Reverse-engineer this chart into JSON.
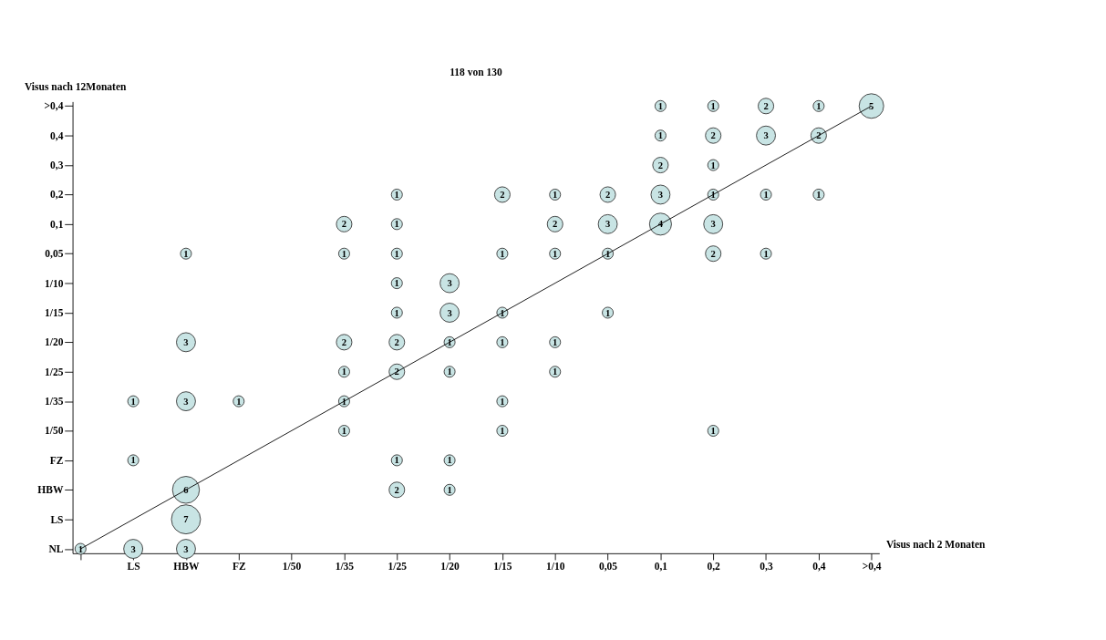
{
  "chart_data": {
    "type": "heatmap",
    "title": "118 von 130",
    "xlabel": "Visus nach 2 Monaten",
    "ylabel": "Visus nach 12Monaten",
    "categories": [
      null,
      "LS",
      "HBW",
      "FZ",
      "1/50",
      "1/35",
      "1/25",
      "1/20",
      "1/15",
      "1/10",
      "0,05",
      "0,1",
      "0,2",
      "0,3",
      "0,4",
      ">0,4"
    ],
    "y_categories": [
      ">0,4",
      "0,4",
      "0,3",
      "0,2",
      "0,1",
      "0,05",
      "1/10",
      "1/15",
      "1/20",
      "1/25",
      "1/35",
      "1/50",
      "FZ",
      "HBW",
      "LS",
      "NL"
    ],
    "cells": [
      [
        null,
        null,
        null,
        null,
        null,
        null,
        null,
        null,
        null,
        null,
        null,
        1,
        1,
        2,
        1,
        5
      ],
      [
        null,
        null,
        null,
        null,
        null,
        null,
        null,
        null,
        null,
        null,
        null,
        1,
        2,
        3,
        2,
        null
      ],
      [
        null,
        null,
        null,
        null,
        null,
        null,
        null,
        null,
        null,
        null,
        null,
        2,
        1,
        null,
        null,
        null
      ],
      [
        null,
        null,
        null,
        null,
        null,
        null,
        1,
        null,
        2,
        1,
        2,
        3,
        1,
        1,
        1,
        null
      ],
      [
        null,
        null,
        null,
        null,
        null,
        2,
        1,
        null,
        null,
        2,
        3,
        4,
        3,
        null,
        null,
        null
      ],
      [
        null,
        null,
        1,
        null,
        null,
        1,
        1,
        null,
        1,
        1,
        1,
        null,
        2,
        1,
        null,
        null
      ],
      [
        null,
        null,
        null,
        null,
        null,
        null,
        1,
        3,
        null,
        null,
        null,
        null,
        null,
        null,
        null,
        null
      ],
      [
        null,
        null,
        null,
        null,
        null,
        null,
        1,
        3,
        1,
        null,
        1,
        null,
        null,
        null,
        null,
        null
      ],
      [
        null,
        null,
        3,
        null,
        null,
        2,
        2,
        1,
        1,
        1,
        null,
        null,
        null,
        null,
        null,
        null
      ],
      [
        null,
        null,
        null,
        null,
        null,
        1,
        2,
        1,
        null,
        1,
        null,
        null,
        null,
        null,
        null,
        null
      ],
      [
        null,
        1,
        3,
        1,
        null,
        1,
        null,
        null,
        1,
        null,
        null,
        null,
        null,
        null,
        null,
        null
      ],
      [
        null,
        null,
        null,
        null,
        null,
        1,
        null,
        null,
        1,
        null,
        null,
        null,
        1,
        null,
        null,
        null
      ],
      [
        null,
        1,
        null,
        null,
        null,
        null,
        1,
        1,
        null,
        null,
        null,
        null,
        null,
        null,
        null,
        null
      ],
      [
        null,
        null,
        6,
        null,
        null,
        null,
        2,
        1,
        null,
        null,
        null,
        null,
        null,
        null,
        null,
        null
      ],
      [
        null,
        null,
        7,
        null,
        null,
        null,
        null,
        null,
        null,
        null,
        null,
        null,
        null,
        null,
        null,
        null
      ],
      [
        1,
        3,
        3,
        null,
        null,
        null,
        null,
        null,
        null,
        null,
        null,
        null,
        null,
        null,
        null,
        null
      ]
    ],
    "cell_labels": [
      [
        null,
        null,
        null,
        null,
        null,
        null,
        null,
        null,
        null,
        null,
        null,
        "1",
        "1",
        "2",
        "1",
        "5"
      ],
      [
        null,
        null,
        null,
        null,
        null,
        null,
        null,
        null,
        null,
        null,
        null,
        "1",
        "2",
        "3",
        "2",
        null
      ],
      [
        null,
        null,
        null,
        null,
        null,
        null,
        null,
        null,
        null,
        null,
        null,
        "2",
        "1",
        null,
        null,
        null
      ],
      [
        null,
        null,
        null,
        null,
        null,
        null,
        "1",
        null,
        "2",
        "1",
        "2",
        "3",
        "1",
        "1",
        "1",
        null
      ],
      [
        null,
        null,
        null,
        null,
        null,
        "2",
        "1",
        null,
        null,
        "2",
        "3",
        "4",
        "3",
        null,
        null,
        null
      ],
      [
        null,
        null,
        "1",
        null,
        null,
        "1",
        "1",
        null,
        "1",
        "1",
        "1",
        null,
        "2",
        "1",
        null,
        null
      ],
      [
        null,
        null,
        null,
        null,
        null,
        null,
        "1",
        "3",
        null,
        null,
        null,
        null,
        null,
        null,
        null,
        null
      ],
      [
        null,
        null,
        null,
        null,
        null,
        null,
        "1",
        "3",
        "1",
        null,
        "1",
        null,
        null,
        null,
        null,
        null
      ],
      [
        null,
        null,
        "3",
        null,
        null,
        "2",
        "2",
        "1",
        "1",
        "1",
        null,
        null,
        null,
        null,
        null,
        null
      ],
      [
        null,
        null,
        null,
        null,
        null,
        "1",
        "2",
        "1",
        null,
        "1",
        null,
        null,
        null,
        null,
        null,
        null
      ],
      [
        null,
        "1",
        "3",
        "1",
        null,
        "1",
        null,
        null,
        "1",
        null,
        null,
        null,
        null,
        null,
        null,
        null
      ],
      [
        null,
        null,
        null,
        null,
        null,
        "1",
        null,
        null,
        "1",
        null,
        null,
        null,
        "1",
        null,
        null,
        null
      ],
      [
        null,
        "1",
        null,
        null,
        null,
        null,
        "1",
        "1",
        null,
        null,
        null,
        null,
        null,
        null,
        null,
        null
      ],
      [
        null,
        null,
        "6",
        null,
        null,
        null,
        "2",
        "1",
        null,
        null,
        null,
        null,
        null,
        null,
        null,
        null
      ],
      [
        null,
        null,
        "7",
        null,
        null,
        null,
        null,
        null,
        null,
        null,
        null,
        null,
        null,
        null,
        null,
        null
      ],
      [
        "1",
        "3",
        "3",
        null,
        null,
        null,
        null,
        null,
        null,
        null,
        null,
        null,
        null,
        null,
        null,
        null
      ]
    ],
    "color": "#c8e4e4"
  }
}
